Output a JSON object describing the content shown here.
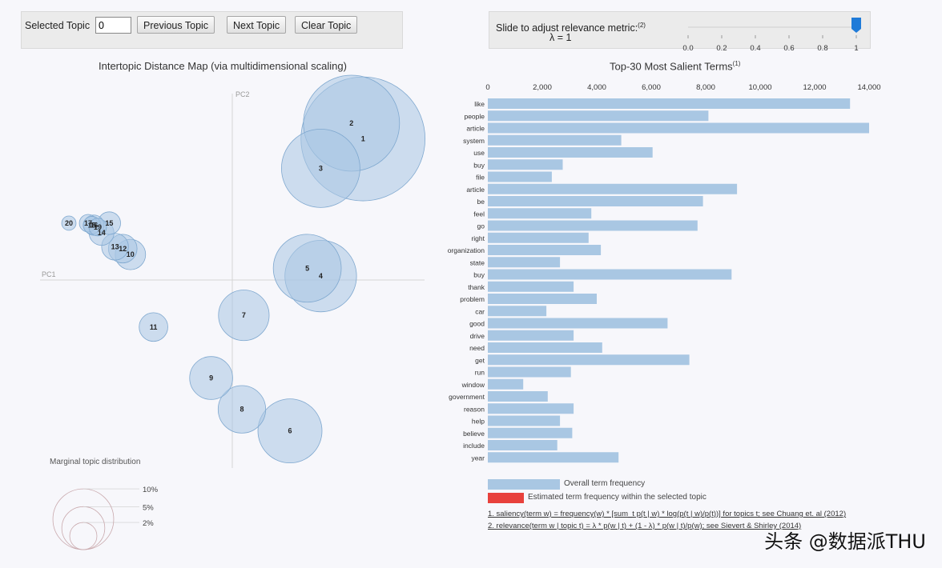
{
  "controls": {
    "selected_topic_label": "Selected Topic",
    "selected_topic_value": "0",
    "previous_label": "Previous Topic",
    "next_label": "Next Topic",
    "clear_label": "Clear Topic"
  },
  "slider": {
    "label_line1": "Slide to adjust relevance metric:",
    "superscript": "(2)",
    "label_line2": "λ = 1",
    "value": 1,
    "ticks": [
      "0.0",
      "0.2",
      "0.4",
      "0.6",
      "0.8",
      "1"
    ]
  },
  "colors": {
    "bubble_fill": "#a9c7e3",
    "bubble_stroke": "#7fa8cf",
    "bar_overall": "#a9c7e3",
    "bar_selected": "#e8413c",
    "slider_handle": "#1f7bd8"
  },
  "chart_data": [
    {
      "type": "scatter",
      "title": "Intertopic Distance Map (via multidimensional scaling)",
      "xlabel": "PC1",
      "ylabel": "PC2",
      "xlim": [
        -1,
        1
      ],
      "ylim": [
        -1,
        1
      ],
      "grid": false,
      "points": [
        {
          "label": "1",
          "x": 0.68,
          "y": 0.72,
          "size": 15.0
        },
        {
          "label": "2",
          "x": 0.62,
          "y": 0.8,
          "size": 9.0
        },
        {
          "label": "3",
          "x": 0.46,
          "y": 0.57,
          "size": 6.0
        },
        {
          "label": "4",
          "x": 0.46,
          "y": 0.02,
          "size": 5.0
        },
        {
          "label": "5",
          "x": 0.39,
          "y": 0.06,
          "size": 4.5
        },
        {
          "label": "6",
          "x": 0.3,
          "y": -0.77,
          "size": 4.0
        },
        {
          "label": "7",
          "x": 0.06,
          "y": -0.18,
          "size": 2.5
        },
        {
          "label": "8",
          "x": 0.05,
          "y": -0.66,
          "size": 2.2
        },
        {
          "label": "9",
          "x": -0.11,
          "y": -0.5,
          "size": 1.8
        },
        {
          "label": "10",
          "x": -0.53,
          "y": 0.13,
          "size": 0.9
        },
        {
          "label": "11",
          "x": -0.41,
          "y": -0.24,
          "size": 0.8
        },
        {
          "label": "12",
          "x": -0.57,
          "y": 0.16,
          "size": 0.8
        },
        {
          "label": "13",
          "x": -0.61,
          "y": 0.17,
          "size": 0.7
        },
        {
          "label": "14",
          "x": -0.68,
          "y": 0.24,
          "size": 0.6
        },
        {
          "label": "15",
          "x": -0.64,
          "y": 0.29,
          "size": 0.5
        },
        {
          "label": "16",
          "x": -0.72,
          "y": 0.28,
          "size": 0.4
        },
        {
          "label": "17",
          "x": -0.75,
          "y": 0.29,
          "size": 0.3
        },
        {
          "label": "18",
          "x": -0.73,
          "y": 0.28,
          "size": 0.3
        },
        {
          "label": "19",
          "x": -0.7,
          "y": 0.27,
          "size": 0.3
        },
        {
          "label": "20",
          "x": -0.85,
          "y": 0.29,
          "size": 0.2
        }
      ],
      "legend": {
        "title": "Marginal topic distribution",
        "entries": [
          {
            "label": "2%",
            "size": 2
          },
          {
            "label": "5%",
            "size": 5
          },
          {
            "label": "10%",
            "size": 10
          }
        ],
        "placement": "bottom-left"
      }
    },
    {
      "type": "bar",
      "orientation": "horizontal",
      "title": "Top-30 Most Salient Terms",
      "title_superscript": "(1)",
      "xlim": [
        0,
        14000
      ],
      "xticks": [
        0,
        2000,
        4000,
        6000,
        8000,
        10000,
        12000,
        14000
      ],
      "xtick_labels": [
        "0",
        "2,000",
        "4,000",
        "6,000",
        "8,000",
        "10,000",
        "12,000",
        "14,000"
      ],
      "grid": false,
      "categories": [
        "like",
        "people",
        "article",
        "system",
        "use",
        "buy",
        "file",
        "article",
        "be",
        "feel",
        "go",
        "right",
        "organization",
        "state",
        "buy",
        "thank",
        "problem",
        "car",
        "good",
        "drive",
        "need",
        "get",
        "run",
        "window",
        "government",
        "reason",
        "help",
        "believe",
        "include",
        "year"
      ],
      "series": [
        {
          "name": "Overall term frequency",
          "values": [
            13300,
            8100,
            14000,
            4900,
            6050,
            2750,
            2350,
            9150,
            7900,
            3800,
            7700,
            3700,
            4150,
            2650,
            8950,
            3150,
            4000,
            2150,
            6600,
            3150,
            4200,
            7400,
            3050,
            1300,
            2200,
            3150,
            2650,
            3100,
            2550,
            4800
          ]
        }
      ],
      "legend": {
        "entries": [
          "Overall term frequency",
          "Estimated term frequency within the selected topic"
        ],
        "placement": "bottom"
      },
      "footnotes": [
        "1. saliency(term w) = frequency(w) * [sum_t p(t | w) * log(p(t | w)/p(t))] for topics t; see Chuang et. al (2012)",
        "2. relevance(term w | topic t) = λ * p(w | t) + (1 - λ) * p(w | t)/p(w); see Sievert & Shirley (2014)"
      ]
    }
  ],
  "watermark": "头条 @数据派THU"
}
